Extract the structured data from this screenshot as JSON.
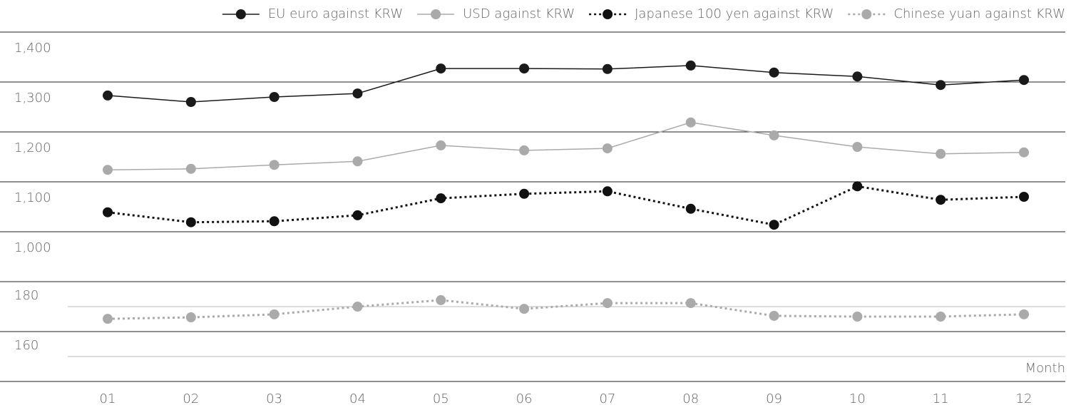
{
  "chart_data": {
    "type": "line",
    "x_label": "Month",
    "categories": [
      "01",
      "02",
      "03",
      "04",
      "05",
      "06",
      "07",
      "08",
      "09",
      "10",
      "11",
      "12"
    ],
    "ylim": [
      1000,
      1400
    ],
    "yticks": [
      {
        "value": 1400,
        "label": "1,400"
      },
      {
        "value": 1300,
        "label": "1,300"
      },
      {
        "value": 1200,
        "label": "1,200"
      },
      {
        "value": 1100,
        "label": "1,100"
      },
      {
        "value": 1000,
        "label": "1,000"
      }
    ],
    "y2lim": [
      140,
      180
    ],
    "y2ticks": [
      180,
      160
    ],
    "y2minor_ticks": [
      170,
      150
    ],
    "grid": true,
    "legend": "top-right",
    "series": [
      {
        "name": "EU euro against KRW",
        "color": "#1a1a1a",
        "dash": "solid",
        "values": [
          1273,
          1260,
          1270,
          1277,
          1327,
          1327,
          1326,
          1333,
          1319,
          1311,
          1294,
          1304
        ]
      },
      {
        "name": "USD against KRW",
        "color": "#aaaaaa",
        "dash": "solid",
        "values": [
          1124,
          1126,
          1134,
          1141,
          1173,
          1163,
          1167,
          1219,
          1193,
          1170,
          1156,
          1159
        ]
      },
      {
        "name": "Japanese 100 yen against KRW",
        "color": "#111111",
        "dash": "dotted",
        "values": [
          1039,
          1019,
          1021,
          1033,
          1067,
          1076,
          1081,
          1046,
          1014,
          1091,
          1064,
          1070
        ]
      },
      {
        "name": "Chinese yuan against KRW",
        "color": "#aaaaaa",
        "dash": "dotted",
        "axis": "y2",
        "values": [
          165.1,
          165.7,
          166.9,
          170,
          172.6,
          169.1,
          171.4,
          171.4,
          166.3,
          166,
          166,
          166.9
        ]
      }
    ]
  }
}
